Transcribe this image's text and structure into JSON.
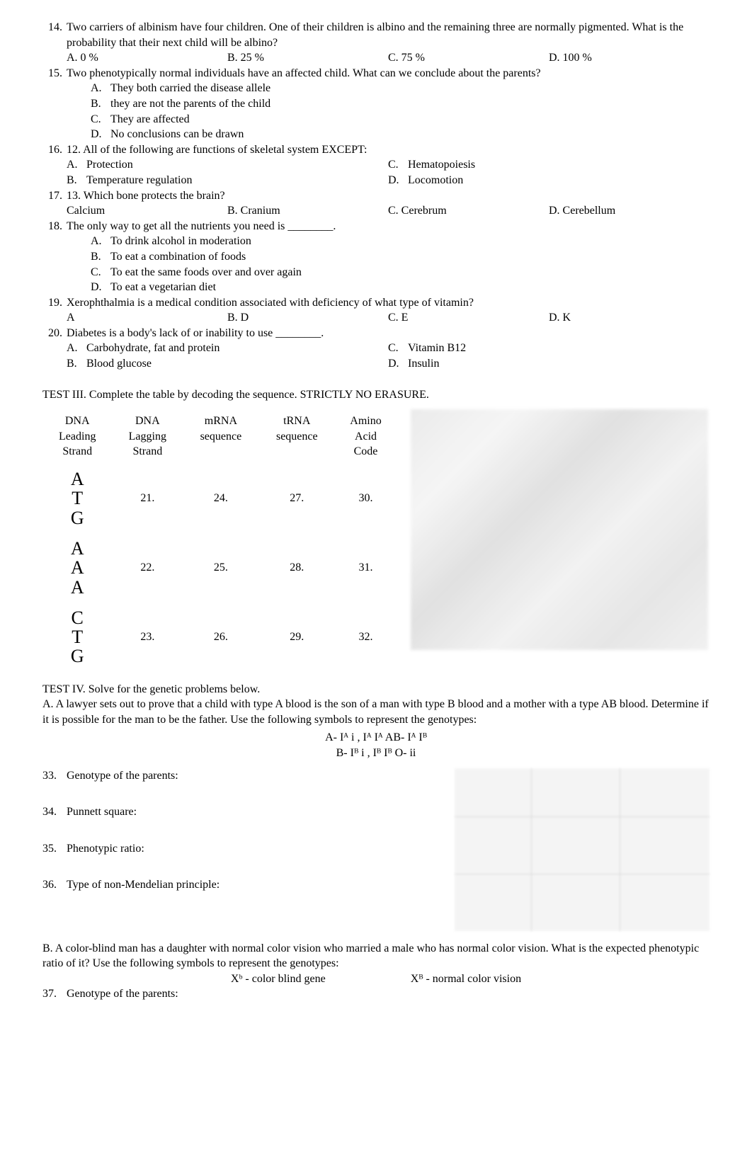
{
  "questions": [
    {
      "num": "14.",
      "text": "Two carriers of albinism have four children. One of their children is albino and the remaining three are normally pigmented. What is the probability that their next child will be albino?",
      "opts_inline": [
        {
          "lab": "A.",
          "txt": "0 %"
        },
        {
          "lab": "B.",
          "txt": "25 %"
        },
        {
          "lab": "C.",
          "txt": "75 %"
        },
        {
          "lab": "D.",
          "txt": "100 %"
        }
      ]
    },
    {
      "num": "15.",
      "text": "Two phenotypically normal individuals have an affected child. What can we conclude about the parents?",
      "sub_opts": [
        {
          "lab": "A.",
          "txt": "They both carried the disease allele"
        },
        {
          "lab": "B.",
          "txt": "they are not the parents of the child"
        },
        {
          "lab": "C.",
          "txt": "They are affected"
        },
        {
          "lab": "D.",
          "txt": "No conclusions can be drawn"
        }
      ]
    },
    {
      "num": "16.",
      "text": "12. All of the following are functions of skeletal system EXCEPT:",
      "two_col_opts": {
        "left": [
          {
            "lab": "A.",
            "txt": "Protection"
          },
          {
            "lab": "B.",
            "txt": "Temperature regulation"
          }
        ],
        "right": [
          {
            "lab": "C.",
            "txt": "Hematopoiesis"
          },
          {
            "lab": "D.",
            "txt": "Locomotion"
          }
        ]
      }
    },
    {
      "num": "17.",
      "text": "13. Which bone protects the brain?",
      "opts_inline": [
        {
          "lab": "",
          "txt": "Calcium"
        },
        {
          "lab": "B.",
          "txt": "Cranium"
        },
        {
          "lab": "C.",
          "txt": "Cerebrum"
        },
        {
          "lab": "D.",
          "txt": "Cerebellum"
        }
      ]
    },
    {
      "num": "18.",
      "text": "The only way to get all the nutrients you need is ________.",
      "sub_opts": [
        {
          "lab": "A.",
          "txt": "To drink alcohol in moderation"
        },
        {
          "lab": "B.",
          "txt": "To eat a combination of foods"
        },
        {
          "lab": "C.",
          "txt": "To eat the same foods over and over again"
        },
        {
          "lab": "D.",
          "txt": "To eat a vegetarian diet"
        }
      ]
    },
    {
      "num": "19.",
      "text": "Xerophthalmia is a medical condition associated with deficiency of what type of vitamin?",
      "opts_inline": [
        {
          "lab": "",
          "txt": "A"
        },
        {
          "lab": "B.",
          "txt": "D"
        },
        {
          "lab": "C.",
          "txt": "E"
        },
        {
          "lab": "D.",
          "txt": "K"
        }
      ]
    },
    {
      "num": "20.",
      "text": "Diabetes is a body's lack of or inability to use ________.",
      "two_col_opts": {
        "left": [
          {
            "lab": "A.",
            "txt": "Carbohydrate, fat and protein"
          },
          {
            "lab": "B.",
            "txt": "Blood glucose"
          }
        ],
        "right": [
          {
            "lab": "C.",
            "txt": "Vitamin B12"
          },
          {
            "lab": "D.",
            "txt": "Insulin"
          }
        ]
      }
    }
  ],
  "test3": {
    "heading": "TEST III. Complete the table by decoding the sequence. STRICTLY NO ERASURE.",
    "headers": [
      "DNA Leading Strand",
      "DNA Lagging Strand",
      "mRNA sequence",
      "tRNA sequence",
      "Amino Acid Code"
    ],
    "rows": [
      {
        "codon": [
          "A",
          "T",
          "G"
        ],
        "c": [
          "21.",
          "24.",
          "27.",
          "30."
        ]
      },
      {
        "codon": [
          "A",
          "A",
          "A"
        ],
        "c": [
          "22.",
          "25.",
          "28.",
          "31."
        ]
      },
      {
        "codon": [
          "C",
          "T",
          "G"
        ],
        "c": [
          "23.",
          "26.",
          "29.",
          "32."
        ]
      }
    ]
  },
  "test4": {
    "heading": "TEST IV. Solve for the genetic problems below.",
    "partA_intro": "A.  A lawyer sets out to prove that a child with type A blood is the son of a man with type B blood and a mother with a type AB blood. Determine if it is possible for the man to be the father. Use the following symbols to represent the genotypes:",
    "geno_line1": "A- Iᴬ i ,   Iᴬ Iᴬ       AB- Iᴬ Iᴮ",
    "geno_line2": "B- Iᴮ i ,   Iᴮ Iᴮ         O- ii",
    "items": [
      {
        "n": "33.",
        "t": "Genotype of the parents:"
      },
      {
        "n": "34.",
        "t": "Punnett square:"
      },
      {
        "n": "35.",
        "t": "Phenotypic ratio:"
      },
      {
        "n": "36.",
        "t": "Type of non-Mendelian principle:"
      }
    ],
    "partB_intro": "B.  A color-blind man has a daughter with normal color vision who married a male who has normal color vision. What is the expected phenotypic ratio of it? Use the following symbols to represent the genotypes:",
    "partB_sym_left": "Xᵇ - color blind gene",
    "partB_sym_right": "Xᴮ - normal color vision",
    "item37": {
      "n": "37.",
      "t": "Genotype of the parents:"
    }
  }
}
